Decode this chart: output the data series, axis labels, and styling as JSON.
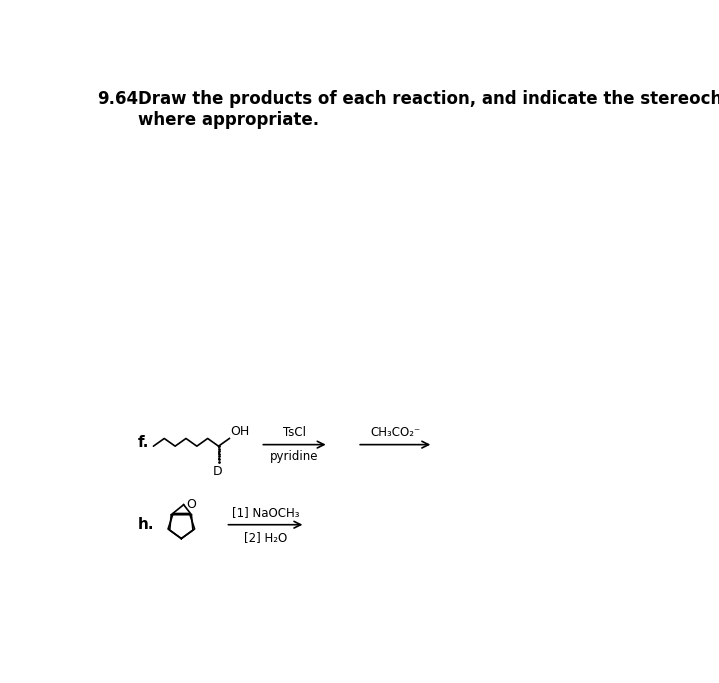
{
  "title_number": "9.64",
  "title_text": "Draw the products of each reaction, and indicate the stereochemistry\nwhere appropriate.",
  "bg_color": "#ffffff",
  "fig_width": 7.19,
  "fig_height": 6.83,
  "label_f": "f.",
  "label_h": "h.",
  "reaction_f": {
    "arrow1_label_top": "TsCl",
    "arrow1_label_bottom": "pyridine",
    "arrow2_label_top": "CH₃CO₂⁻"
  },
  "reaction_h": {
    "arrow_label_top": "[1] NaOCH₃",
    "arrow_label_bottom": "[2] H₂O"
  }
}
